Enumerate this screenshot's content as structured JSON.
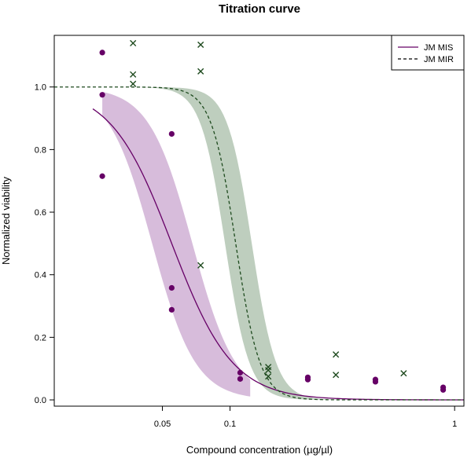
{
  "chart_data": {
    "type": "scatter",
    "title": "Titration curve",
    "xlabel": "Compound concentration (µg/µl)",
    "ylabel": "Normalized viability",
    "x_scale": "log",
    "xlim": [
      0.0165,
      1.1
    ],
    "ylim": [
      -0.02,
      1.165
    ],
    "x_ticks": [
      0.05,
      0.1,
      1
    ],
    "x_tick_labels": [
      "0.05",
      "0.1",
      "1"
    ],
    "y_ticks": [
      0.0,
      0.2,
      0.4,
      0.6,
      0.8,
      1.0
    ],
    "y_tick_labels": [
      "0.0",
      "0.2",
      "0.4",
      "0.6",
      "0.8",
      "1.0"
    ],
    "grid": false,
    "legend_position": "top-right",
    "series": [
      {
        "name": "JM MIS",
        "line_style": "solid",
        "marker": "circle",
        "color": "#660066",
        "band_color": "#c9a5cf",
        "points": [
          {
            "x": 0.027,
            "y": 1.11
          },
          {
            "x": 0.027,
            "y": 0.975
          },
          {
            "x": 0.027,
            "y": 0.715
          },
          {
            "x": 0.055,
            "y": 0.85
          },
          {
            "x": 0.055,
            "y": 0.358
          },
          {
            "x": 0.055,
            "y": 0.288
          },
          {
            "x": 0.111,
            "y": 0.087
          },
          {
            "x": 0.111,
            "y": 0.067
          },
          {
            "x": 0.222,
            "y": 0.072
          },
          {
            "x": 0.222,
            "y": 0.065
          },
          {
            "x": 0.444,
            "y": 0.065
          },
          {
            "x": 0.444,
            "y": 0.058
          },
          {
            "x": 0.889,
            "y": 0.04
          },
          {
            "x": 0.889,
            "y": 0.032
          }
        ],
        "curve": {
          "top": 1.0,
          "bottom": 0.0,
          "ec50": 0.055,
          "hill": 3.2,
          "x_min": 0.0245
        },
        "band": {
          "x_min": 0.027,
          "x_max": 0.123,
          "ec50_low": 0.045,
          "ec50_high": 0.068,
          "hill": 4.5
        }
      },
      {
        "name": "JM MIR",
        "line_style": "dashed",
        "marker": "x",
        "color": "#1e4a1e",
        "band_color": "#a8bea8",
        "points": [
          {
            "x": 0.037,
            "y": 1.14
          },
          {
            "x": 0.037,
            "y": 1.04
          },
          {
            "x": 0.037,
            "y": 1.01
          },
          {
            "x": 0.074,
            "y": 1.135
          },
          {
            "x": 0.074,
            "y": 1.05
          },
          {
            "x": 0.074,
            "y": 0.43
          },
          {
            "x": 0.148,
            "y": 0.105
          },
          {
            "x": 0.148,
            "y": 0.095
          },
          {
            "x": 0.148,
            "y": 0.075
          },
          {
            "x": 0.296,
            "y": 0.145
          },
          {
            "x": 0.296,
            "y": 0.08
          },
          {
            "x": 0.593,
            "y": 0.085
          }
        ],
        "curve": {
          "top": 1.0,
          "bottom": 0.0,
          "ec50": 0.106,
          "hill": 8.0,
          "x_min": 0.0165
        },
        "band": {
          "x_min": 0.037,
          "x_max": 0.35,
          "ec50_low": 0.095,
          "ec50_high": 0.125,
          "hill": 8.0
        }
      }
    ]
  }
}
